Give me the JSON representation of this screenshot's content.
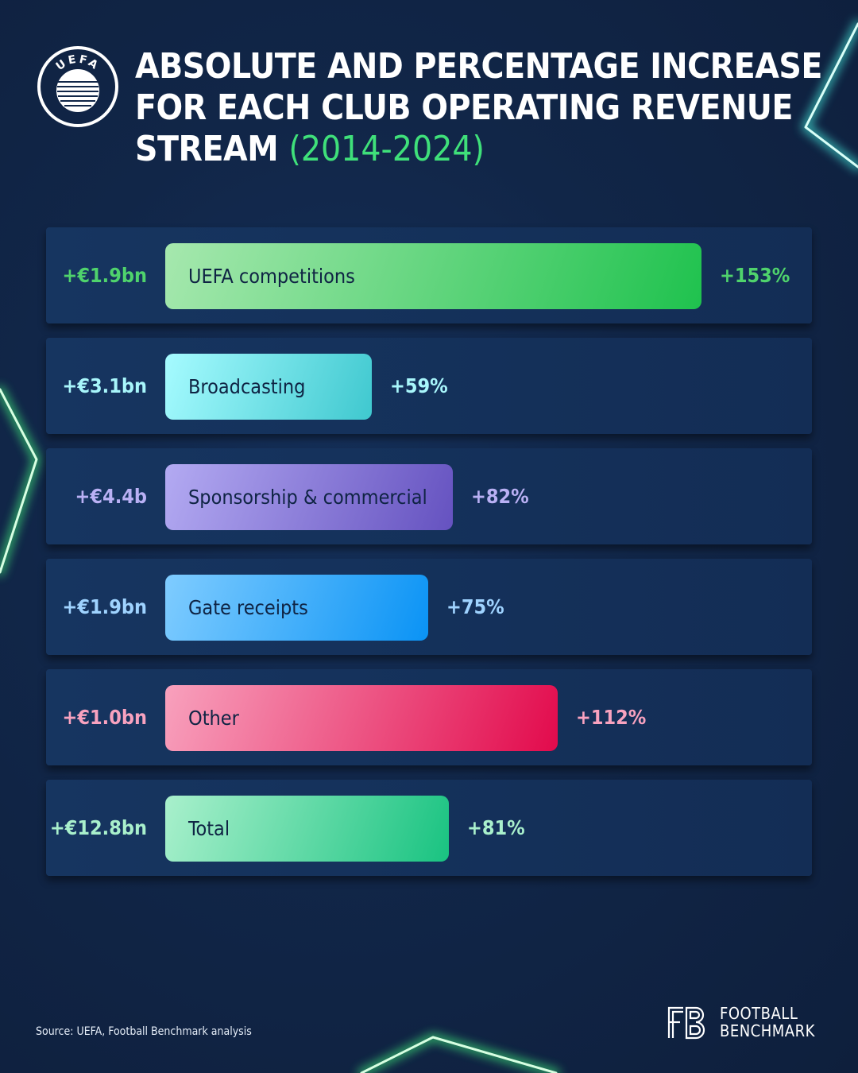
{
  "header": {
    "title": "ABSOLUTE AND PERCENTAGE INCREASE FOR EACH CLUB OPERATING REVENUE STREAM",
    "period": "(2014-2024)",
    "logo_text": "UEFA"
  },
  "chart_data": {
    "type": "bar",
    "orientation": "horizontal",
    "categories": [
      "UEFA competitions",
      "Broadcasting",
      "Sponsorship & commercial",
      "Gate receipts",
      "Other",
      "Total"
    ],
    "absolute_labels": [
      "+€1.9bn",
      "+€3.1bn",
      "+€4.4b",
      "+€1.9bn",
      "+€1.0bn",
      "+€12.8bn"
    ],
    "percentage_labels": [
      "+153%",
      "+59%",
      "+82%",
      "+75%",
      "+112%",
      "+81%"
    ],
    "values": [
      153,
      59,
      82,
      75,
      112,
      81
    ],
    "unit": "%",
    "colors": [
      [
        "#a6e8ae",
        "#1fc24e"
      ],
      [
        "#a6fbff",
        "#3fc8cf"
      ],
      [
        "#b3aaf2",
        "#6552c0"
      ],
      [
        "#7fccff",
        "#0a93f5"
      ],
      [
        "#f8a1bd",
        "#e20a4c"
      ],
      [
        "#a9f0cc",
        "#19c381"
      ]
    ],
    "text_colors": [
      "#4fd36c",
      "#a8f6fb",
      "#b9b0f4",
      "#9fd3ff",
      "#f8a2bf",
      "#a9f0cc"
    ]
  },
  "footer": {
    "source": "Source: UEFA, Football Benchmark analysis",
    "brand_line1": "FOOTBALL",
    "brand_line2": "BENCHMARK"
  }
}
